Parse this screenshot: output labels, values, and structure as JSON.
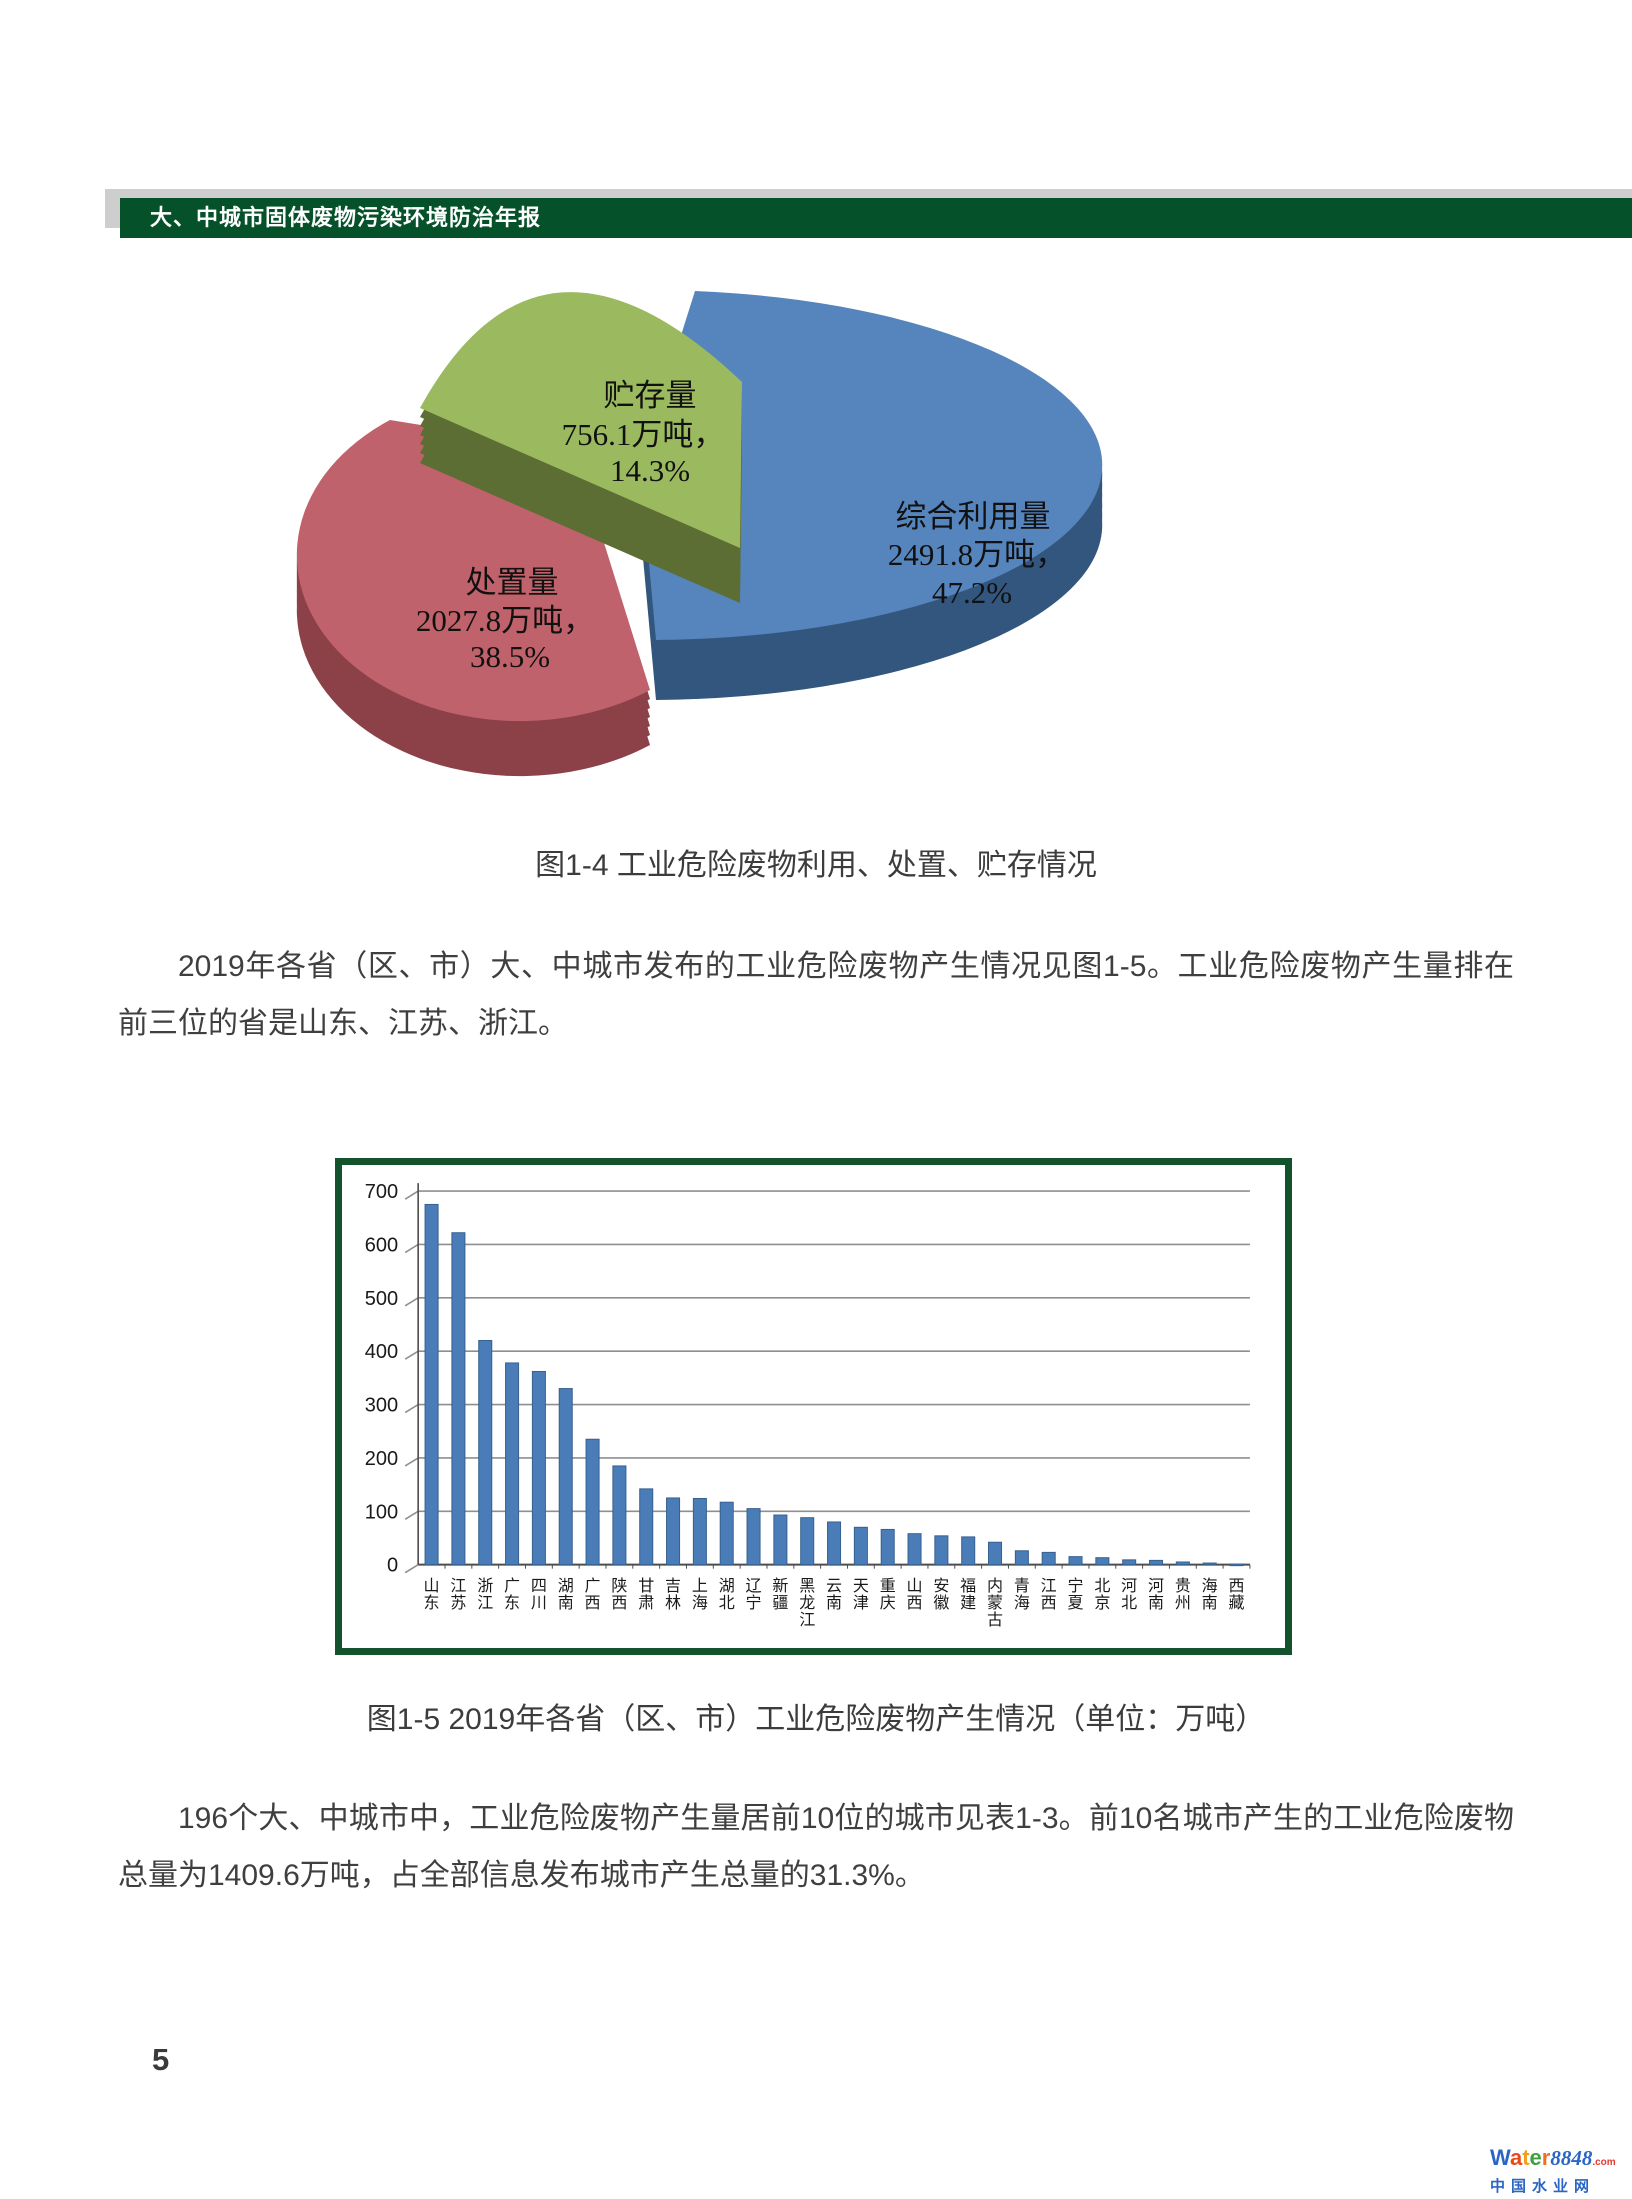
{
  "header": {
    "title": "大、中城市固体废物污染环境防治年报"
  },
  "figure4": {
    "caption": "图1-4  工业危险废物利用、处置、贮存情况",
    "chart_data": {
      "type": "pie",
      "title": "工业危险废物利用、处置、贮存情况",
      "slices": [
        {
          "name": "综合利用量",
          "value": 2491.8,
          "value_label": "2491.8万吨，",
          "percent": "47.2%",
          "color": "#5585bc",
          "side_color": "#33567e"
        },
        {
          "name": "处置量",
          "value": 2027.8,
          "value_label": "2027.8万吨，",
          "percent": "38.5%",
          "color": "#c0626b",
          "side_color": "#8c4149"
        },
        {
          "name": "贮存量",
          "value": 756.1,
          "value_label": "756.1万吨，",
          "percent": "14.3%",
          "color": "#9bb95f",
          "side_color": "#5c6e33"
        }
      ]
    }
  },
  "paragraph1": "2019年各省（区、市）大、中城市发布的工业危险废物产生情况见图1-5。工业危险废物产生量排在前三位的省是山东、江苏、浙江。",
  "figure5": {
    "caption": "图1-5 2019年各省（区、市）工业危险废物产生情况（单位：万吨）",
    "chart_data": {
      "type": "bar",
      "categories": [
        "山东",
        "江苏",
        "浙江",
        "广东",
        "四川",
        "湖南",
        "广西",
        "陕西",
        "甘肃",
        "吉林",
        "上海",
        "湖北",
        "辽宁",
        "新疆",
        "黑龙江",
        "云南",
        "天津",
        "重庆",
        "山西",
        "安徽",
        "福建",
        "内蒙古",
        "青海",
        "江西",
        "宁夏",
        "北京",
        "河北",
        "河南",
        "贵州",
        "海南",
        "西藏"
      ],
      "values": [
        675,
        622,
        420,
        378,
        362,
        330,
        235,
        185,
        142,
        125,
        124,
        117,
        105,
        93,
        88,
        80,
        70,
        66,
        58,
        54,
        52,
        42,
        26,
        23,
        15,
        13,
        9,
        8,
        5,
        3,
        1
      ],
      "ylim": [
        0,
        700
      ],
      "ytick_step": 100,
      "grid": true,
      "bar_color": "#4a7db8",
      "bar_edge_color": "#36618f",
      "axis_color": "#4d4d4d",
      "grid_color": "#8f8f8f"
    }
  },
  "paragraph2": "196个大、中城市中，工业危险废物产生量居前10位的城市见表1-3。前10名城市产生的工业危险废物总量为1409.6万吨，占全部信息发布城市产生总量的31.3%。",
  "page_number": "5",
  "watermark": {
    "brand_letters": [
      {
        "ch": "W",
        "color": "#2a66c5"
      },
      {
        "ch": "a",
        "color": "#e64a19"
      },
      {
        "ch": "t",
        "color": "#f0a11c"
      },
      {
        "ch": "e",
        "color": "#3fa03c"
      },
      {
        "ch": "r",
        "color": "#f07020"
      }
    ],
    "brand_suffix": "8848",
    "brand_suffix_color": "#2a66c5",
    "dot_com": ".com",
    "dot_com_color": "#e03c2f",
    "subtitle": "中国水业网",
    "subtitle_color": "#2a66c5"
  }
}
